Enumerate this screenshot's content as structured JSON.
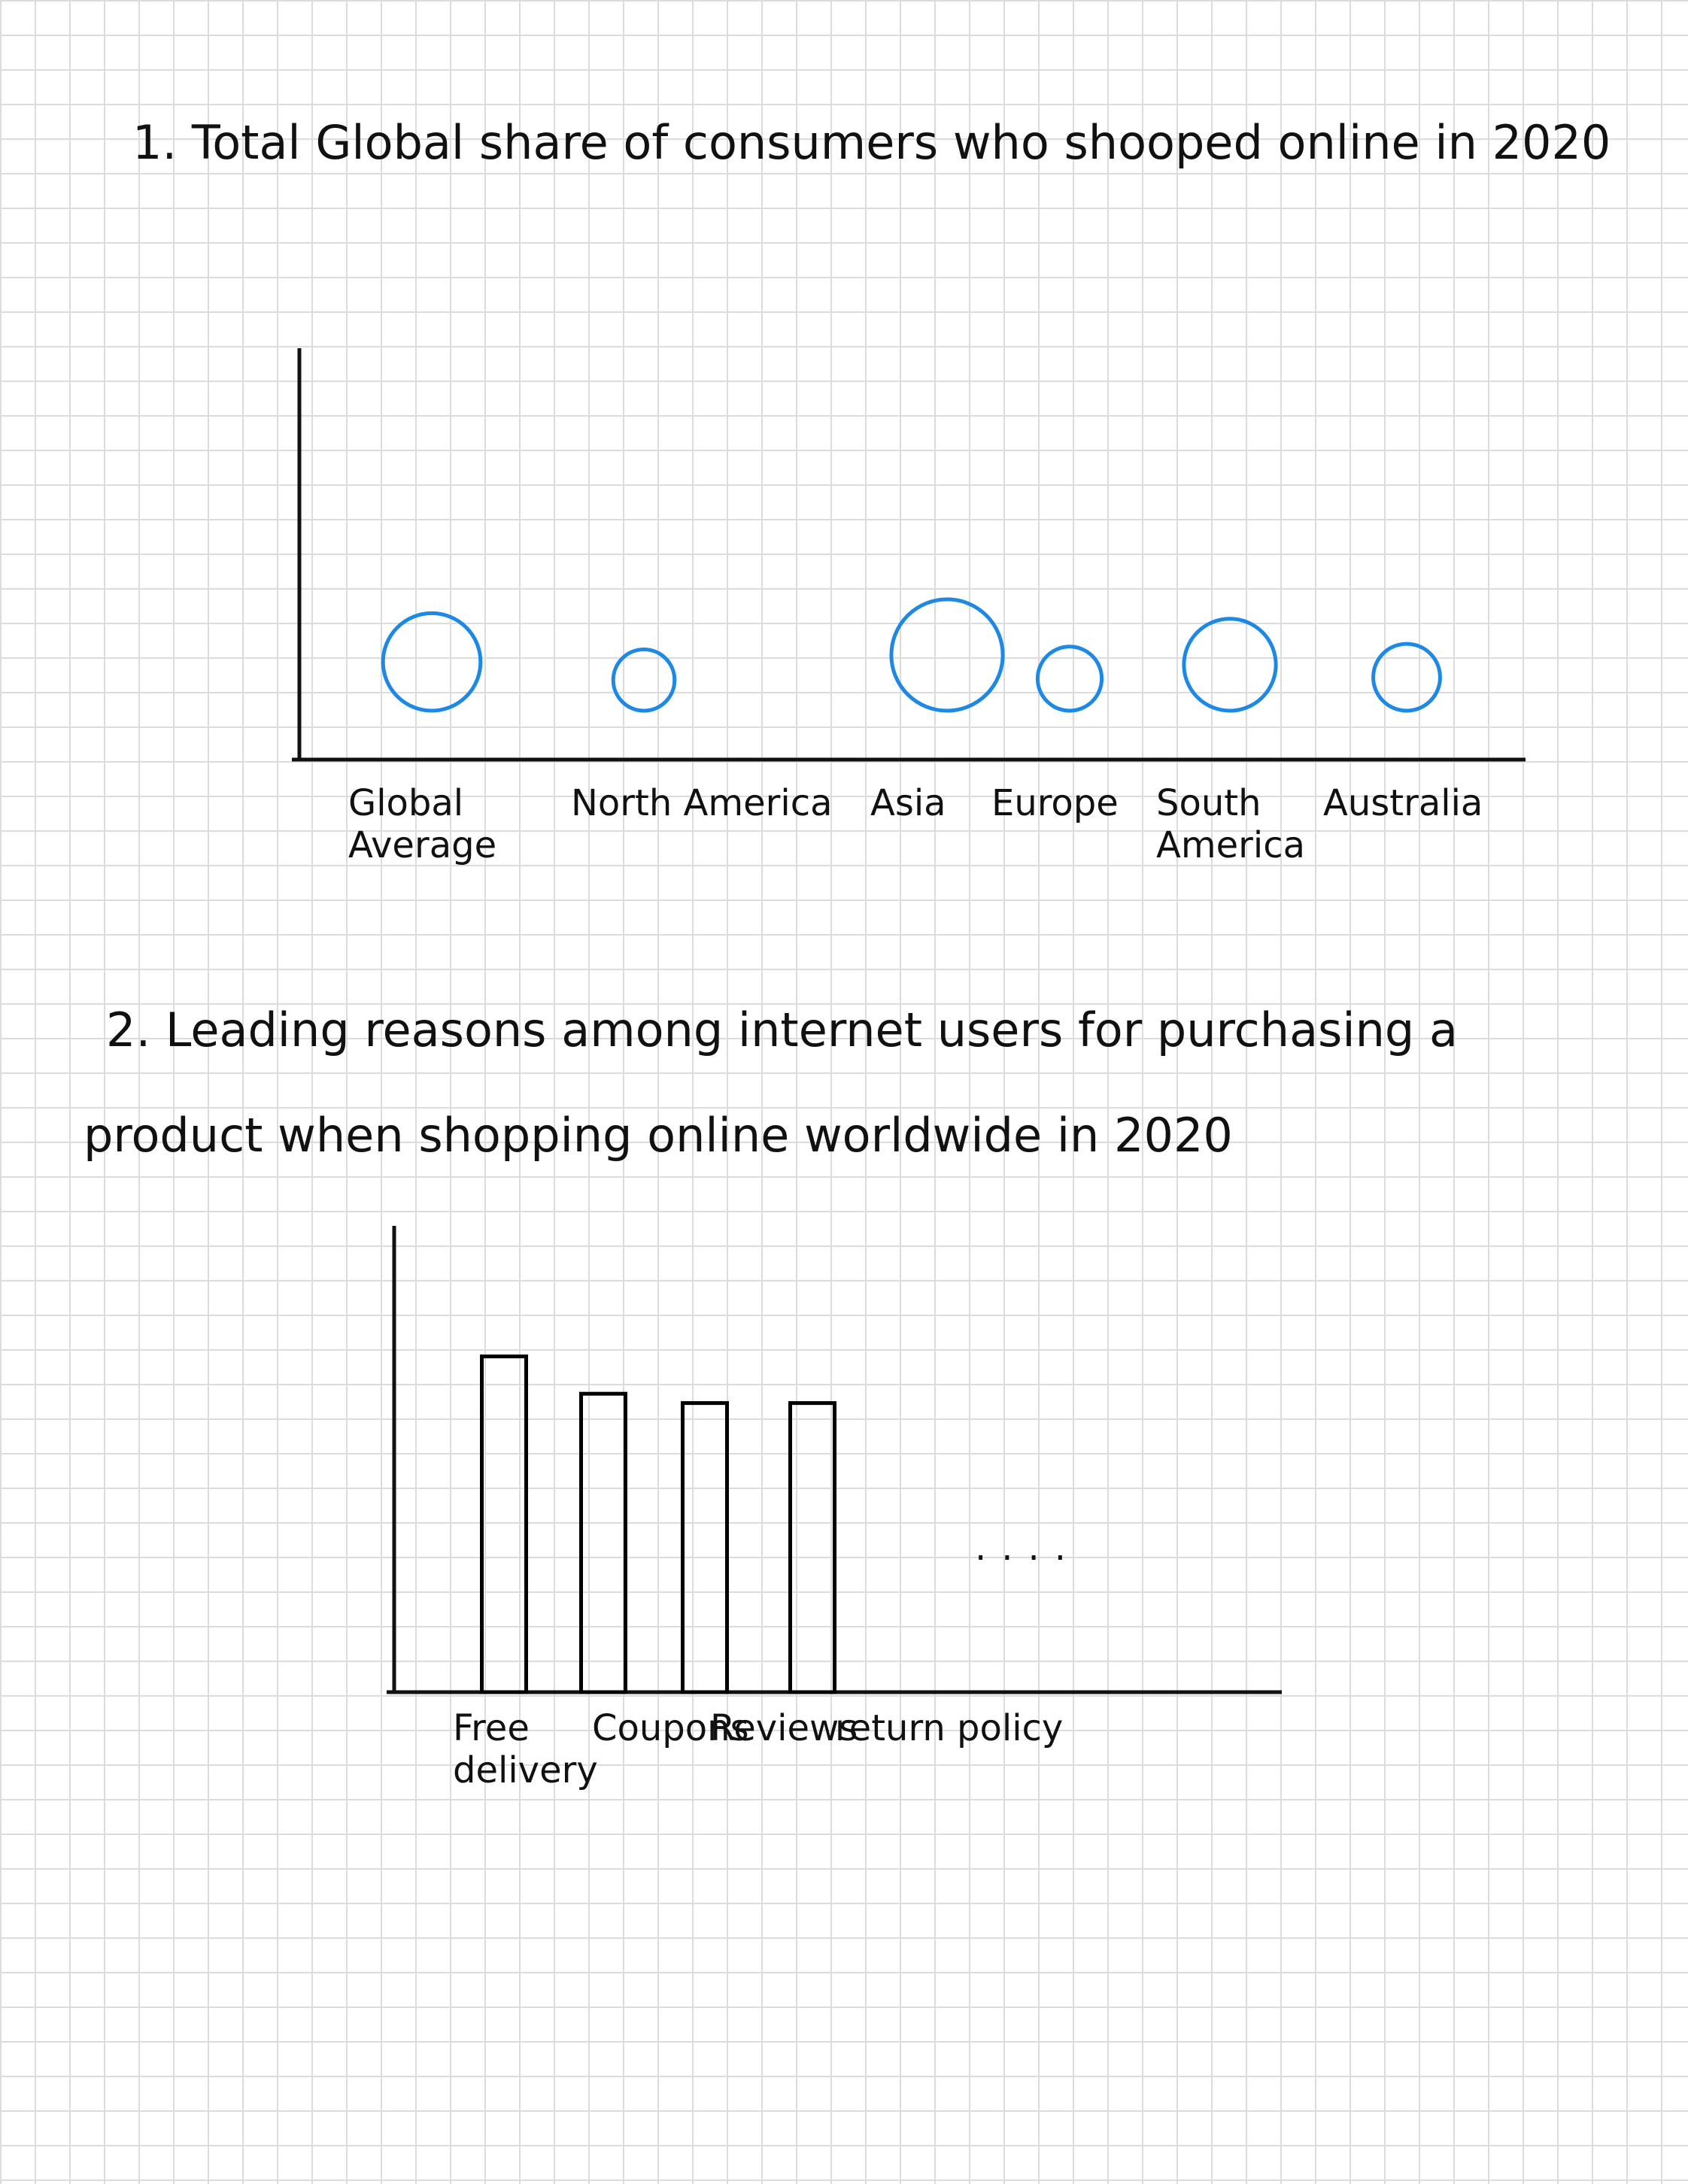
{
  "chart_data": [
    {
      "type": "bubble",
      "title": "1. Total Global share of consumers who shooped online in 2020",
      "categories": [
        "Global Average",
        "North America",
        "Asia",
        "Europe",
        "South America",
        "Australia"
      ],
      "values": [
        35,
        22,
        40,
        23,
        33,
        24
      ],
      "color": "#1e88e5"
    },
    {
      "type": "bar",
      "title": "2. Leading reasons among internet users for purchasing a product when shopping online worldwide in 2020",
      "categories": [
        "Free delivery",
        "Coupons",
        "Reviews",
        "return policy"
      ],
      "values": [
        72,
        64,
        62,
        62
      ],
      "ylim": [
        0,
        100
      ],
      "color": "#000000",
      "annotation": "...."
    }
  ]
}
